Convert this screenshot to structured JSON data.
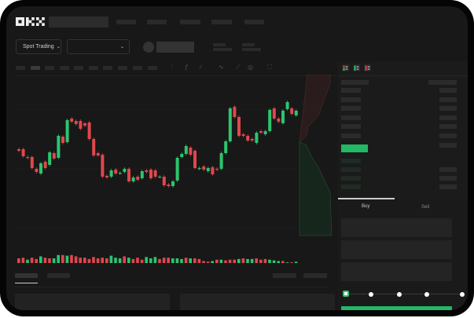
{
  "header": {
    "logo": "OKX",
    "market_selector": "Spot Trading"
  },
  "trade": {
    "buy_tab": "Buy",
    "sell_tab": "Sell",
    "leverage_steps": 5,
    "selected_step": 0
  },
  "colors": {
    "up": "#2cc56f",
    "down": "#e0474c",
    "background": "#181818",
    "accent": "#22b865"
  },
  "icons": [
    "chevron-down-icon",
    "candle-type-icon",
    "indicator-icon",
    "line-tool-icon",
    "ruler-icon",
    "camera-icon",
    "settings-icon",
    "fullscreen-icon",
    "orderbook-both-icon",
    "orderbook-bids-icon",
    "orderbook-asks-icon"
  ],
  "chart_data": {
    "type": "candlestick",
    "candles": [
      [
        118,
        116
      ],
      [
        118,
        109
      ],
      [
        108,
        107
      ],
      [
        108,
        94
      ],
      [
        93,
        89
      ],
      [
        87,
        100
      ],
      [
        102,
        94
      ],
      [
        98,
        114
      ],
      [
        113,
        106
      ],
      [
        107,
        135
      ],
      [
        134,
        126
      ],
      [
        127,
        155
      ],
      [
        157,
        153
      ],
      [
        154,
        150
      ],
      [
        154,
        144
      ],
      [
        151,
        148
      ],
      [
        152,
        131
      ],
      [
        131,
        110
      ],
      [
        113,
        110
      ],
      [
        111,
        83
      ],
      [
        84,
        82
      ],
      [
        83,
        91
      ],
      [
        92,
        87
      ],
      [
        87,
        88
      ],
      [
        89,
        93
      ],
      [
        93,
        77
      ],
      [
        77,
        82
      ],
      [
        83,
        79
      ],
      [
        81,
        90
      ],
      [
        91,
        89
      ],
      [
        92,
        81
      ],
      [
        91,
        83
      ],
      [
        83,
        83
      ],
      [
        83,
        72
      ],
      [
        73,
        71
      ],
      [
        71,
        77
      ],
      [
        78,
        107
      ],
      [
        108,
        112
      ],
      [
        112,
        122
      ],
      [
        120,
        111
      ],
      [
        116,
        94
      ],
      [
        93,
        94
      ],
      [
        96,
        92
      ],
      [
        90,
        94
      ],
      [
        95,
        86
      ],
      [
        93,
        92
      ],
      [
        93,
        113
      ],
      [
        113,
        128
      ],
      [
        128,
        170
      ],
      [
        172,
        159
      ],
      [
        159,
        135
      ],
      [
        137,
        135
      ],
      [
        135,
        129
      ],
      [
        131,
        129
      ],
      [
        126,
        139
      ],
      [
        141,
        139
      ],
      [
        137,
        141
      ],
      [
        141,
        168
      ],
      [
        170,
        157
      ],
      [
        157,
        153
      ],
      [
        151,
        167
      ],
      [
        169,
        178
      ],
      [
        170,
        163
      ],
      [
        161,
        167
      ]
    ],
    "volume": [
      7,
      8,
      5,
      8,
      6,
      10,
      8,
      7,
      7,
      12,
      12,
      11,
      12,
      10,
      8,
      8,
      6,
      9,
      7,
      8,
      7,
      11,
      8,
      7,
      10,
      8,
      6,
      8,
      5,
      9,
      7,
      9,
      6,
      8,
      8,
      7,
      7,
      6,
      8,
      7,
      7,
      6,
      3,
      2,
      3,
      5,
      5,
      4,
      5,
      5,
      6,
      7,
      6,
      6,
      7,
      5,
      6,
      5,
      4,
      3,
      3,
      1,
      1,
      2
    ],
    "volume_up": [
      false,
      false,
      true,
      false,
      false,
      true,
      false,
      false,
      true,
      true,
      false,
      true,
      false,
      false,
      false,
      false,
      false,
      false,
      false,
      false,
      false,
      true,
      true,
      true,
      false,
      true,
      false,
      false,
      false,
      true,
      true,
      true,
      false,
      false,
      false,
      true,
      true,
      true,
      false,
      true,
      false,
      false,
      false,
      false,
      true,
      false,
      true,
      false,
      false,
      false,
      true,
      false,
      true,
      true,
      false,
      false,
      false,
      true,
      true,
      true,
      false,
      true,
      false,
      true
    ]
  }
}
